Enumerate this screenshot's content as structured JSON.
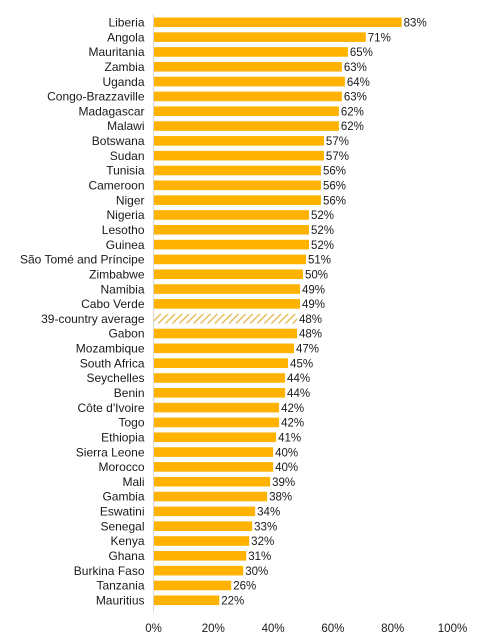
{
  "chart_data": {
    "type": "bar",
    "orientation": "horizontal",
    "title": "",
    "xlabel": "",
    "ylabel": "",
    "xlim": [
      0,
      100
    ],
    "grid": false,
    "legend": "none",
    "bar_color": "#FFB300",
    "average_pattern_color": "#E5B24A",
    "x_ticks": [
      {
        "value": 0,
        "label": "0%"
      },
      {
        "value": 20,
        "label": "20%"
      },
      {
        "value": 40,
        "label": "40%"
      },
      {
        "value": 60,
        "label": "60%"
      },
      {
        "value": 80,
        "label": "80%"
      },
      {
        "value": 100,
        "label": "100%"
      }
    ],
    "bars": [
      {
        "category": "Liberia",
        "value": 83,
        "label": "83%"
      },
      {
        "category": "Angola",
        "value": 71,
        "label": "71%"
      },
      {
        "category": "Mauritania",
        "value": 65,
        "label": "65%"
      },
      {
        "category": "Zambia",
        "value": 63,
        "label": "63%"
      },
      {
        "category": "Uganda",
        "value": 64,
        "label": "64%"
      },
      {
        "category": "Congo-Brazzaville",
        "value": 63,
        "label": "63%"
      },
      {
        "category": "Madagascar",
        "value": 62,
        "label": "62%"
      },
      {
        "category": "Malawi",
        "value": 62,
        "label": "62%"
      },
      {
        "category": "Botswana",
        "value": 57,
        "label": "57%"
      },
      {
        "category": "Sudan",
        "value": 57,
        "label": "57%"
      },
      {
        "category": "Tunisia",
        "value": 56,
        "label": "56%"
      },
      {
        "category": "Cameroon",
        "value": 56,
        "label": "56%"
      },
      {
        "category": "Niger",
        "value": 56,
        "label": "56%"
      },
      {
        "category": "Nigeria",
        "value": 52,
        "label": "52%"
      },
      {
        "category": "Lesotho",
        "value": 52,
        "label": "52%"
      },
      {
        "category": "Guinea",
        "value": 52,
        "label": "52%"
      },
      {
        "category": "São Tomé and Príncipe",
        "value": 51,
        "label": "51%"
      },
      {
        "category": "Zimbabwe",
        "value": 50,
        "label": "50%"
      },
      {
        "category": "Namibia",
        "value": 49,
        "label": "49%"
      },
      {
        "category": "Cabo Verde",
        "value": 49,
        "label": "49%"
      },
      {
        "category": "39-country average",
        "value": 48,
        "label": "48%",
        "average": true
      },
      {
        "category": "Gabon",
        "value": 48,
        "label": "48%"
      },
      {
        "category": "Mozambique",
        "value": 47,
        "label": "47%"
      },
      {
        "category": "South Africa",
        "value": 45,
        "label": "45%"
      },
      {
        "category": "Seychelles",
        "value": 44,
        "label": "44%"
      },
      {
        "category": "Benin",
        "value": 44,
        "label": "44%"
      },
      {
        "category": "Côte d'Ivoire",
        "value": 42,
        "label": "42%"
      },
      {
        "category": "Togo",
        "value": 42,
        "label": "42%"
      },
      {
        "category": "Ethiopia",
        "value": 41,
        "label": "41%"
      },
      {
        "category": "Sierra Leone",
        "value": 40,
        "label": "40%"
      },
      {
        "category": "Morocco",
        "value": 40,
        "label": "40%"
      },
      {
        "category": "Mali",
        "value": 39,
        "label": "39%"
      },
      {
        "category": "Gambia",
        "value": 38,
        "label": "38%"
      },
      {
        "category": "Eswatini",
        "value": 34,
        "label": "34%"
      },
      {
        "category": "Senegal",
        "value": 33,
        "label": "33%"
      },
      {
        "category": "Kenya",
        "value": 32,
        "label": "32%"
      },
      {
        "category": "Ghana",
        "value": 31,
        "label": "31%"
      },
      {
        "category": "Burkina Faso",
        "value": 30,
        "label": "30%"
      },
      {
        "category": "Tanzania",
        "value": 26,
        "label": "26%"
      },
      {
        "category": "Mauritius",
        "value": 22,
        "label": "22%"
      }
    ]
  }
}
